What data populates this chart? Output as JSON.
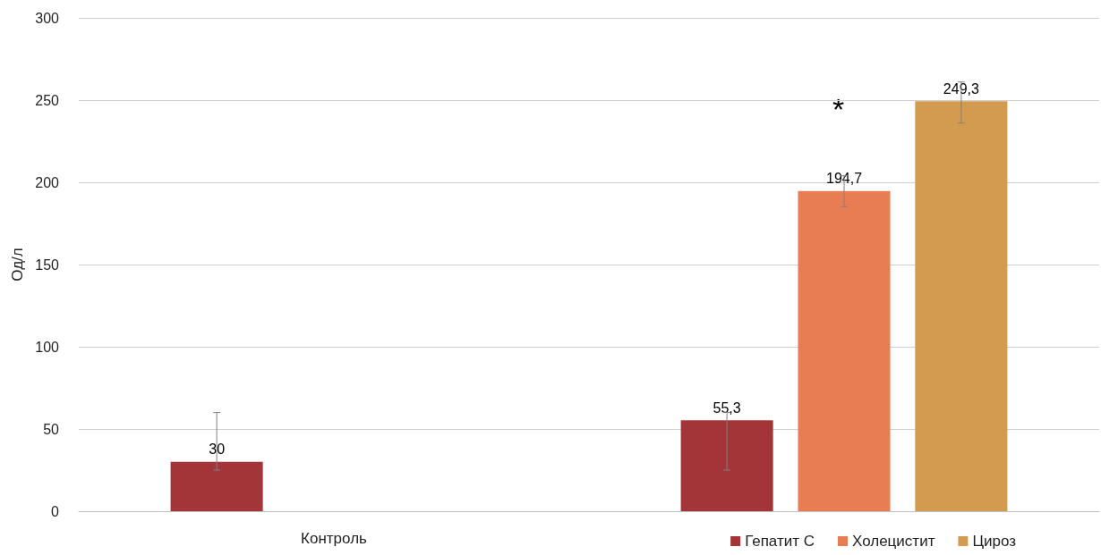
{
  "chart_data": {
    "type": "bar",
    "ylabel": "Од/л",
    "categories": [
      "Контроль",
      null
    ],
    "series": [
      {
        "name": "Гепатит С",
        "color": "#a33538",
        "values": [
          30,
          55.3
        ],
        "value_labels": [
          "30",
          "55,3"
        ],
        "errors": [
          [
            25,
            60
          ],
          [
            25,
            60
          ]
        ]
      },
      {
        "name": "Холецистит",
        "color": "#e87c52",
        "values": [
          null,
          194.7
        ],
        "value_labels": [
          null,
          "194,7"
        ],
        "errors": [
          null,
          [
            185,
            204
          ]
        ]
      },
      {
        "name": "Цироз",
        "color": "#d39b50",
        "values": [
          null,
          249.3
        ],
        "value_labels": [
          null,
          "249,3"
        ],
        "errors": [
          null,
          [
            236,
            261
          ]
        ]
      }
    ],
    "ylim": [
      0,
      300
    ],
    "yticks": [
      0,
      50,
      100,
      150,
      200,
      250,
      300
    ],
    "grid": "y",
    "legend": "bottom right",
    "annotations": [
      "*"
    ]
  }
}
